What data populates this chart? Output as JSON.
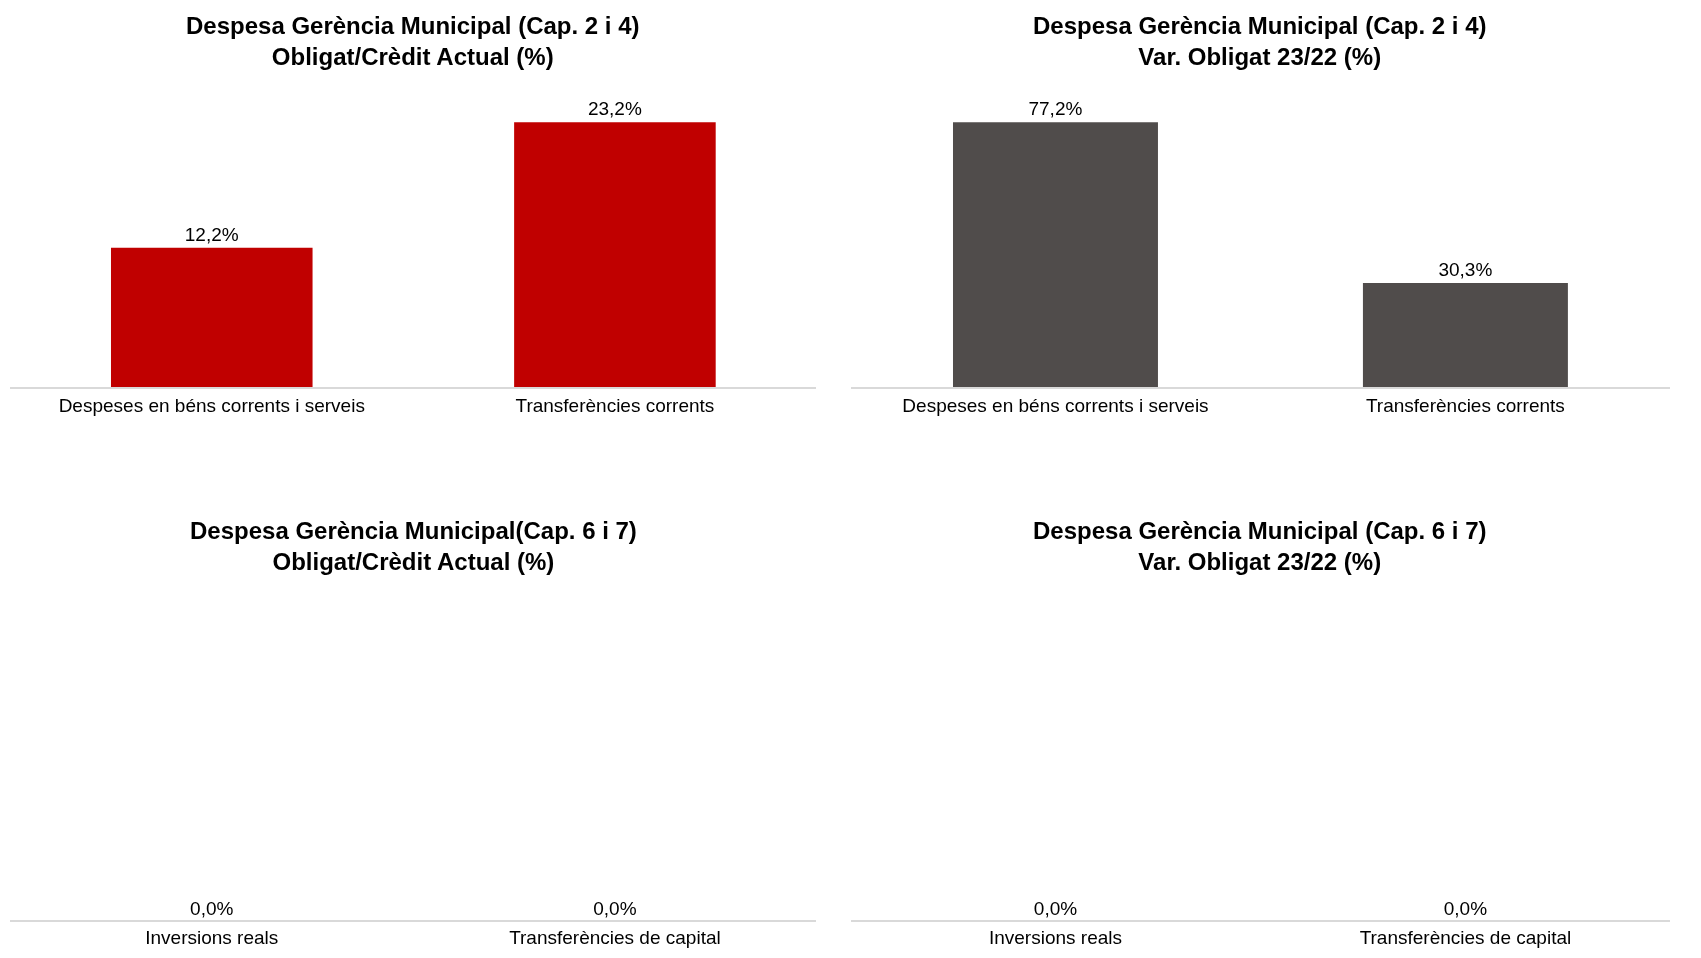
{
  "chart_data": [
    {
      "type": "bar",
      "title": "Despesa Gerència Municipal (Cap. 2 i 4)\nObligat/Crèdit Actual (%)",
      "categories": [
        "Despeses en béns corrents i serveis",
        "Transferències corrents"
      ],
      "values": [
        12.2,
        23.2
      ],
      "value_labels": [
        "12,2%",
        "23,2%"
      ],
      "color": "#c00000"
    },
    {
      "type": "bar",
      "title": "Despesa Gerència Municipal (Cap. 2 i 4)\nVar. Obligat 23/22 (%)",
      "categories": [
        "Despeses en béns corrents i serveis",
        "Transferències corrents"
      ],
      "values": [
        77.2,
        30.3
      ],
      "value_labels": [
        "77,2%",
        "30,3%"
      ],
      "color": "#504c4b"
    },
    {
      "type": "other",
      "title": "Despesa Gerència Municipal(Cap. 6 i 7)\nObligat/Crèdit Actual (%)",
      "categories": [
        "Inversions reals",
        "Transferències de capital"
      ],
      "values": [
        0.0,
        0.0
      ],
      "value_labels": [
        "0,0%",
        "0,0%"
      ]
    },
    {
      "type": "other",
      "title": "Despesa Gerència Municipal (Cap. 6 i 7)\nVar. Obligat 23/22 (%)",
      "categories": [
        "Inversions reals",
        "Transferències de capital"
      ],
      "values": [
        0.0,
        0.0
      ],
      "value_labels": [
        "0,0%",
        "0,0%"
      ]
    }
  ]
}
